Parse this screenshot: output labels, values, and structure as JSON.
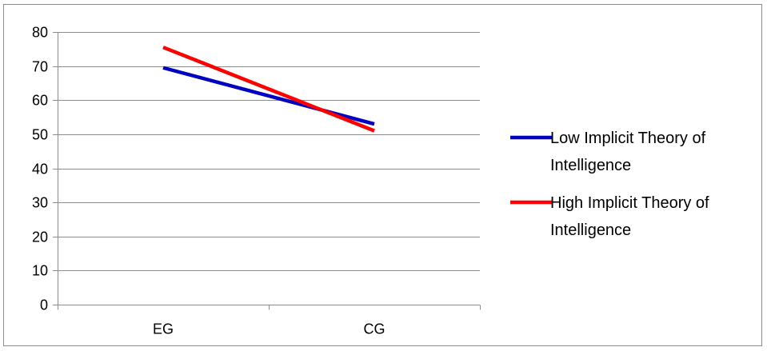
{
  "chart_data": {
    "type": "line",
    "categories": [
      "EG",
      "CG"
    ],
    "yticks": [
      0,
      10,
      20,
      30,
      40,
      50,
      60,
      70,
      80
    ],
    "ylim": [
      0,
      80
    ],
    "grid": true,
    "legend_position": "right",
    "series": [
      {
        "name": "Low Implicit Theory of Intelligence",
        "name_lines": [
          "Low Implicit Theory of",
          "Intelligence"
        ],
        "color": "#0000c0",
        "values": [
          69.5,
          53
        ]
      },
      {
        "name": "High Implicit Theory of Intelligence",
        "name_lines": [
          "High Implicit Theory of",
          "Intelligence"
        ],
        "color": "#ff0000",
        "values": [
          75.5,
          51
        ]
      }
    ]
  }
}
